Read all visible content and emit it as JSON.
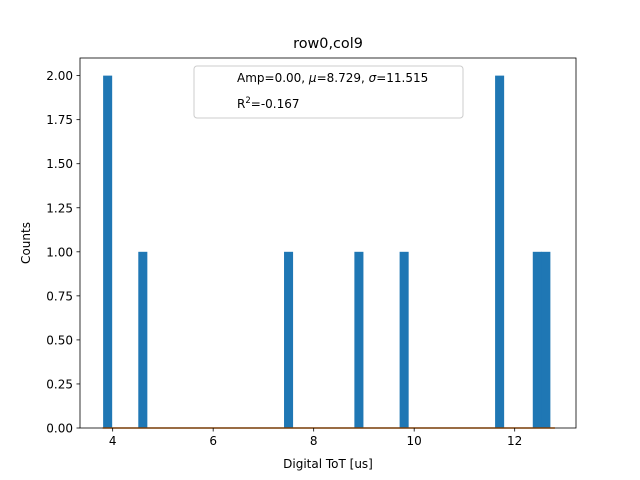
{
  "chart_data": {
    "type": "bar",
    "title": "row0,col9",
    "xlabel": "Digital ToT [us]",
    "ylabel": "Counts",
    "xlim": [
      3.35,
      13.22
    ],
    "ylim": [
      0,
      2.1
    ],
    "x_ticks": [
      4,
      6,
      8,
      10,
      12
    ],
    "y_ticks": [
      0.0,
      0.25,
      0.5,
      0.75,
      1.0,
      1.25,
      1.5,
      1.75,
      2.0
    ],
    "y_tick_labels": [
      "0.00",
      "0.25",
      "0.50",
      "0.75",
      "1.00",
      "1.25",
      "1.50",
      "1.75",
      "2.00"
    ],
    "bar_color": "#1f77b4",
    "fit_color": "#ff7f0e",
    "bin_width": 0.18,
    "bars": [
      {
        "x": 3.9,
        "value": 2
      },
      {
        "x": 4.6,
        "value": 1
      },
      {
        "x": 7.5,
        "value": 1
      },
      {
        "x": 8.9,
        "value": 1
      },
      {
        "x": 9.8,
        "value": 1
      },
      {
        "x": 11.7,
        "value": 2
      },
      {
        "x": 12.45,
        "value": 1
      },
      {
        "x": 12.62,
        "value": 1
      }
    ],
    "fit": {
      "x_range": [
        3.8,
        12.8
      ],
      "value": 0
    },
    "legend": {
      "placement": "upper center",
      "line1_prefix": "Amp=0.00, ",
      "mu_symbol": "μ",
      "line1_mid": "=8.729, ",
      "sigma_symbol": "σ",
      "line1_suffix": "=11.515",
      "line2_base": "R",
      "line2_sup": "2",
      "line2_value": "=-0.167"
    }
  }
}
